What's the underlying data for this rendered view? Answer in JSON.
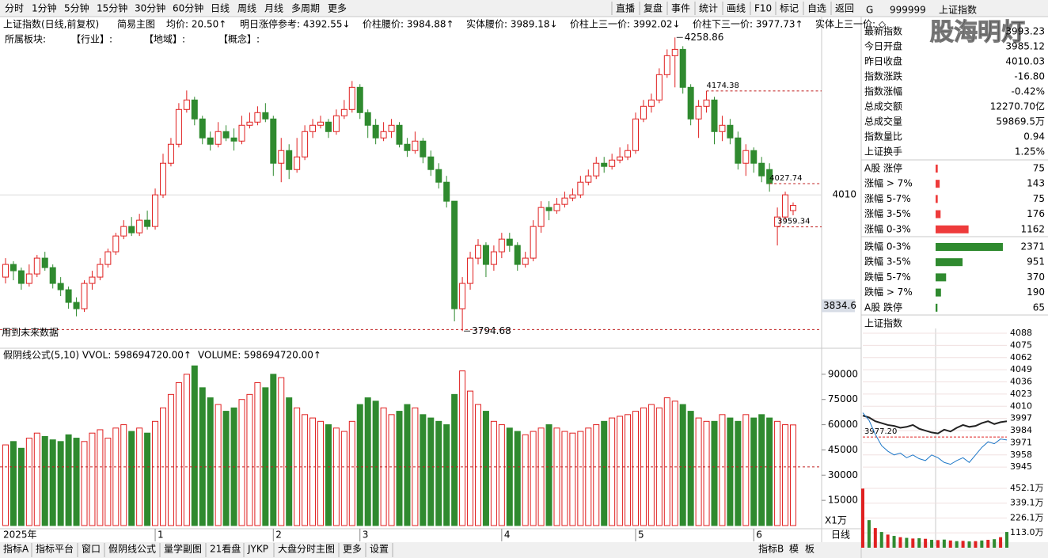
{
  "toolbar": {
    "tabs": [
      "分时",
      "1分钟",
      "5分钟",
      "15分钟",
      "30分钟",
      "60分钟",
      "日线",
      "周线",
      "月线",
      "多周期",
      "更多"
    ],
    "active": 6,
    "right_buttons": [
      "直播",
      "复盘",
      "事件",
      "统计",
      "画线",
      "F10",
      "标记",
      "自选",
      "返回"
    ]
  },
  "chart_data": {
    "type": "candlestick",
    "title": "上证指数(日线,前复权)",
    "template": "简易主图",
    "indicators": [
      "均价: 20.50↑",
      "明日涨停参考: 4392.55↓",
      "价柱腰价: 3984.88↑",
      "实体腰价: 3989.18↓",
      "价柱上三一价: 3992.02↓",
      "价柱下三一价: 3977.73↑",
      "实体上三一价: ◇"
    ],
    "sector_line": [
      "所属板块:",
      "【行业】:",
      "【地域】:",
      "【概念】:"
    ],
    "up_color": "#e02020",
    "down_color": "#2f8a2f",
    "ylim": [
      3780,
      4268
    ],
    "yticks": [
      4010
    ],
    "grid": true,
    "cursor_value": 3834.6,
    "open": [
      3880,
      3900,
      3890,
      3870,
      3885,
      3910,
      3895,
      3870,
      3860,
      3840,
      3830,
      3870,
      3880,
      3900,
      3920,
      3945,
      3960,
      3950,
      3970,
      3960,
      4010,
      4060,
      4090,
      4145,
      4160,
      4130,
      4100,
      4090,
      4110,
      4100,
      4095,
      4120,
      4125,
      4140,
      4130,
      4060,
      4080,
      4050,
      4070,
      4110,
      4120,
      4125,
      4110,
      4135,
      4145,
      4180,
      4140,
      4120,
      4100,
      4110,
      4120,
      4090,
      4080,
      4095,
      4070,
      4050,
      4030,
      4000,
      3830,
      3870,
      3910,
      3930,
      3900,
      3920,
      3940,
      3930,
      3900,
      3910,
      3960,
      3990,
      3985,
      3995,
      4005,
      4010,
      4030,
      4040,
      4060,
      4055,
      4065,
      4070,
      4080,
      4130,
      4150,
      4160,
      4200,
      4230,
      4240,
      4180,
      4130,
      4150,
      4160,
      4110,
      4120,
      4100,
      4060,
      4080,
      4060,
      4050,
      3960,
      3975,
      3985.12
    ],
    "close": [
      3900,
      3890,
      3870,
      3885,
      3910,
      3895,
      3870,
      3860,
      3840,
      3830,
      3870,
      3880,
      3900,
      3920,
      3945,
      3960,
      3950,
      3970,
      3960,
      4010,
      4060,
      4090,
      4145,
      4160,
      4130,
      4100,
      4090,
      4110,
      4100,
      4095,
      4120,
      4125,
      4140,
      4130,
      4060,
      4080,
      4050,
      4070,
      4110,
      4120,
      4125,
      4110,
      4135,
      4145,
      4180,
      4140,
      4120,
      4100,
      4110,
      4120,
      4090,
      4080,
      4095,
      4070,
      4050,
      4030,
      4000,
      3830,
      3870,
      3910,
      3930,
      3900,
      3920,
      3940,
      3930,
      3900,
      3910,
      3960,
      3990,
      3985,
      3995,
      4005,
      4010,
      4030,
      4040,
      4060,
      4055,
      4065,
      4070,
      4080,
      4130,
      4150,
      4160,
      4200,
      4230,
      4240,
      4180,
      4130,
      4150,
      4160,
      4110,
      4120,
      4100,
      4060,
      4080,
      4060,
      4040,
      4027.74,
      3975,
      4010.03,
      3993.23
    ],
    "high": [
      3910,
      3905,
      3895,
      3900,
      3915,
      3920,
      3900,
      3880,
      3865,
      3848,
      3875,
      3890,
      3910,
      3925,
      3950,
      3970,
      3975,
      3980,
      3985,
      4020,
      4075,
      4100,
      4155,
      4175,
      4165,
      4135,
      4110,
      4125,
      4120,
      4115,
      4135,
      4140,
      4150,
      4155,
      4135,
      4100,
      4090,
      4100,
      4120,
      4130,
      4135,
      4130,
      4145,
      4160,
      4190,
      4185,
      4145,
      4130,
      4125,
      4130,
      4125,
      4100,
      4110,
      4100,
      4080,
      4060,
      4040,
      4000,
      3880,
      3920,
      3940,
      3935,
      3930,
      3950,
      3950,
      3935,
      3920,
      3970,
      4000,
      4000,
      4005,
      4015,
      4020,
      4040,
      4050,
      4070,
      4070,
      4075,
      4085,
      4090,
      4140,
      4160,
      4170,
      4210,
      4240,
      4258.86,
      4245,
      4185,
      4160,
      4174.38,
      4165,
      4135,
      4130,
      4110,
      4090,
      4085,
      4070,
      4060,
      3990,
      4015,
      3998
    ],
    "low": [
      3870,
      3875,
      3860,
      3865,
      3880,
      3890,
      3862,
      3850,
      3830,
      3818,
      3825,
      3860,
      3875,
      3895,
      3915,
      3940,
      3945,
      3945,
      3955,
      3955,
      4005,
      4055,
      4085,
      4140,
      4120,
      4090,
      4080,
      4085,
      4095,
      4080,
      4090,
      4115,
      4120,
      4125,
      4040,
      4030,
      4035,
      4045,
      4065,
      4100,
      4115,
      4100,
      4105,
      4130,
      4140,
      4130,
      4100,
      4090,
      4095,
      4100,
      4085,
      4070,
      4075,
      4060,
      4040,
      4020,
      3990,
      3810,
      3794.68,
      3860,
      3900,
      3880,
      3890,
      3910,
      3920,
      3890,
      3895,
      3905,
      3950,
      3970,
      3980,
      3990,
      4000,
      4005,
      4025,
      4035,
      4045,
      4050,
      4060,
      4065,
      4075,
      4125,
      4140,
      4155,
      4195,
      4180,
      4170,
      4120,
      4100,
      4140,
      4090,
      4095,
      4090,
      4050,
      4040,
      4045,
      4030,
      4015,
      3930,
      3970,
      3977.73
    ],
    "extremes": [
      {
        "value": 4258.86,
        "index": 85
      },
      {
        "value": 3794.68,
        "index": 58
      }
    ],
    "levels": [
      {
        "value": 4174.38,
        "index": 89
      },
      {
        "value": 4027.74,
        "index": 97
      },
      {
        "value": 3959.34,
        "index": 98
      }
    ],
    "future_line": {
      "value": 3797,
      "label": "用到未来数据"
    },
    "year_label": "2025年",
    "month_labels": [
      {
        "index": 19,
        "label": "1"
      },
      {
        "index": 34,
        "label": "2"
      },
      {
        "index": 45,
        "label": "3"
      },
      {
        "index": 63,
        "label": "4"
      },
      {
        "index": 80,
        "label": "5"
      },
      {
        "index": 95,
        "label": "6"
      }
    ],
    "volume": {
      "title": "假阴线公式(5,10) VVOL: 598694720.00↑",
      "title2": "VOLUME: 598694720.00↑",
      "unit": "X1万",
      "ylim": [
        0,
        97000
      ],
      "yticks": [
        15000,
        30000,
        45000,
        60000,
        75000,
        90000
      ],
      "ref_line": 34900,
      "values": [
        48000,
        50000,
        46000,
        52000,
        55000,
        53000,
        51000,
        50000,
        54000,
        52000,
        50000,
        55000,
        57000,
        52000,
        58000,
        60000,
        56000,
        58000,
        55000,
        62000,
        70000,
        78000,
        85000,
        90000,
        95000,
        82000,
        76000,
        72000,
        68000,
        70000,
        75000,
        78000,
        85000,
        82000,
        90000,
        88000,
        76000,
        70000,
        66000,
        64000,
        62000,
        60000,
        58000,
        56000,
        62000,
        72000,
        76000,
        74000,
        70000,
        66000,
        68000,
        72000,
        70000,
        66000,
        64000,
        62000,
        60000,
        78000,
        92000,
        80000,
        72000,
        68000,
        62000,
        60000,
        58000,
        56000,
        54000,
        56000,
        58000,
        60000,
        58000,
        56000,
        55000,
        56000,
        58000,
        60000,
        62000,
        64000,
        65000,
        66000,
        68000,
        70000,
        72000,
        70000,
        76000,
        74000,
        72000,
        68000,
        64000,
        62000,
        62000,
        66000,
        64000,
        62000,
        66000,
        64000,
        66000,
        64000,
        62000,
        60000,
        59869.5
      ]
    }
  },
  "quote_panel": {
    "flag": "G",
    "code": "999999",
    "name": "上证指数",
    "watermark": "股海明灯",
    "rows": [
      {
        "label": "最新指数",
        "value": "3993.23",
        "color": "#2f8a2f"
      },
      {
        "label": "今日开盘",
        "value": "3985.12",
        "color": "#2f8a2f"
      },
      {
        "label": "昨日收盘",
        "value": "4010.03",
        "color": "#000000"
      },
      {
        "label": "指数涨跌",
        "value": "-16.80",
        "color": "#2f8a2f"
      },
      {
        "label": "指数涨幅",
        "value": "-0.42%",
        "color": "#2f8a2f"
      },
      {
        "label": "总成交额",
        "value": "12270.70亿",
        "color": "#000000"
      },
      {
        "label": "总成交量",
        "value": "59869.5万",
        "color": "#000000"
      },
      {
        "label": "指数量比",
        "value": "0.94",
        "color": "#000000"
      },
      {
        "label": "上证换手",
        "value": "1.25%",
        "color": "#000000"
      }
    ]
  },
  "breadth": {
    "max": 2400,
    "rows": [
      {
        "label": "A股 涨停",
        "value": 75,
        "color": "#ee3b3b"
      },
      {
        "label": "涨幅 > 7%",
        "value": 143,
        "color": "#ee3b3b"
      },
      {
        "label": "涨幅 5-7%",
        "value": 75,
        "color": "#ee3b3b"
      },
      {
        "label": "涨幅 3-5%",
        "value": 176,
        "color": "#ee3b3b"
      },
      {
        "label": "涨幅 0-3%",
        "value": 1162,
        "color": "#ee3b3b"
      },
      {
        "label": "跌幅 0-3%",
        "value": 2371,
        "color": "#2f8a2f"
      },
      {
        "label": "跌幅 3-5%",
        "value": 951,
        "color": "#2f8a2f"
      },
      {
        "label": "跌幅 5-7%",
        "value": 370,
        "color": "#2f8a2f"
      },
      {
        "label": "跌幅 > 7%",
        "value": 190,
        "color": "#2f8a2f"
      },
      {
        "label": "A股 跌停",
        "value": 65,
        "color": "#2f8a2f"
      }
    ]
  },
  "intraday": {
    "title": "上证指数",
    "ylim": [
      3940,
      4093
    ],
    "yticks": [
      4088,
      4075,
      4062,
      4049,
      4036,
      4023,
      4010,
      3997,
      3984,
      3971,
      3958,
      3945
    ],
    "ref": {
      "value": 3977.2,
      "label": "3977.20"
    },
    "series": [
      {
        "color": "#222222",
        "values": [
          4000,
          3998,
          3994,
          3992,
          3990,
          3989,
          3987,
          3988,
          3990,
          3986,
          3984,
          3982,
          3981,
          3985,
          3983,
          3987,
          3990,
          3988,
          3989,
          3992,
          3994,
          3991,
          3993,
          3994
        ]
      },
      {
        "color": "#1f78c8",
        "values": [
          4003,
          3995,
          3980,
          3968,
          3962,
          3958,
          3960,
          3955,
          3958,
          3954,
          3952,
          3958,
          3955,
          3950,
          3948,
          3952,
          3955,
          3950,
          3958,
          3966,
          3972,
          3970,
          3975,
          3974
        ]
      }
    ],
    "volume_ylim": [
      0,
      470
    ],
    "volume_yticks": [
      {
        "value": 452.1,
        "label": "452.1万"
      },
      {
        "value": 339.1,
        "label": "339.1万"
      },
      {
        "value": 226.1,
        "label": "226.1万"
      },
      {
        "value": 113.0,
        "label": "113.0万"
      }
    ],
    "volume": [
      450,
      210,
      150,
      120,
      100,
      90,
      80,
      75,
      70,
      72,
      68,
      60,
      58,
      62,
      55,
      50,
      52,
      48,
      50,
      55,
      60,
      65,
      80,
      120
    ],
    "tab": "日线"
  },
  "bottom_tabs": {
    "left": [
      "指标A",
      "指标平台",
      "窗口",
      "假阴线公式",
      "量学副图",
      "21看盘",
      "JYKP",
      "大盘分时主图",
      "更多",
      "设置"
    ],
    "active": 3,
    "right": [
      "指标B",
      "模",
      "板"
    ]
  }
}
